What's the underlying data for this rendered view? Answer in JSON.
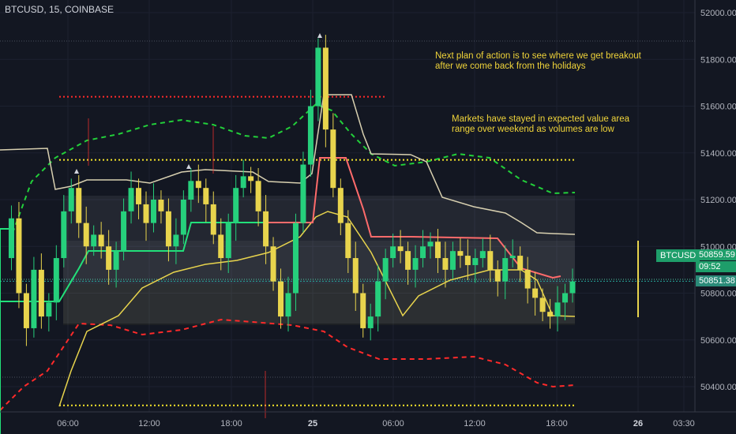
{
  "header": {
    "title": "BTCUSD, 15, COINBASE"
  },
  "annotations": {
    "note1_line1": "Next plan of action is to see where we get breakout",
    "note1_line2": "after we come back from the holidays",
    "note2_line1": "Markets have stayed in expected value area",
    "note2_line2": "range over weekend as volumes are low"
  },
  "price_scale": {
    "symbol_tag": "BTCUSD",
    "last_price": "50859.59",
    "countdown": "09:52",
    "crosshair_price": "50851.38"
  },
  "colors": {
    "background": "#131722",
    "bull": "#26d07c",
    "bear": "#e8d44d",
    "upper_band": "#22d03a",
    "lower_band": "#ff2a2a",
    "vwap_up": "#22e07a",
    "vwap_down": "#ff6b6b",
    "envelope": "#d8d0b0",
    "annotation_text": "#f0d43a",
    "level_red": "#ff2a2a",
    "level_yellow": "#f5e42a"
  },
  "chart_data": {
    "type": "candlestick",
    "symbol": "BTCUSD",
    "interval": "15",
    "exchange": "COINBASE",
    "y_axis": {
      "ticks": [
        52000,
        51800,
        51600,
        51400,
        51200,
        51000,
        50800,
        50600,
        50400
      ],
      "tick_labels": [
        "52000.00",
        "51800.00",
        "51600.00",
        "51400.00",
        "51200.00",
        "51000.00",
        "50800.00",
        "50600.00",
        "50400.00"
      ],
      "ylim": [
        50250,
        52050
      ]
    },
    "x_axis": {
      "tick_labels": [
        "06:00",
        "12:00",
        "18:00",
        "25",
        "06:00",
        "12:00",
        "18:00",
        "26",
        "03:30"
      ],
      "bold": [
        false,
        false,
        false,
        true,
        false,
        false,
        false,
        true,
        false
      ]
    },
    "horizontal_levels": [
      {
        "price": 51640,
        "color": "red",
        "style": "dotted"
      },
      {
        "price": 51370,
        "color": "yellow",
        "style": "dotted"
      },
      {
        "price": 50320,
        "color": "yellow",
        "style": "dotted"
      }
    ],
    "candles_close_path": [
      [
        0,
        50950
      ],
      [
        6,
        51120
      ],
      [
        12,
        50800
      ],
      [
        18,
        50650
      ],
      [
        24,
        50900
      ],
      [
        30,
        50700
      ],
      [
        36,
        50760
      ],
      [
        42,
        50950
      ],
      [
        48,
        51150
      ],
      [
        54,
        51250
      ],
      [
        60,
        51100
      ],
      [
        66,
        51000
      ],
      [
        72,
        51050
      ],
      [
        78,
        51000
      ],
      [
        84,
        50900
      ],
      [
        90,
        50980
      ],
      [
        96,
        51150
      ],
      [
        102,
        51250
      ],
      [
        108,
        51180
      ],
      [
        114,
        51100
      ],
      [
        120,
        51200
      ],
      [
        126,
        51150
      ],
      [
        132,
        51000
      ],
      [
        138,
        51050
      ],
      [
        144,
        51200
      ],
      [
        150,
        51280
      ],
      [
        156,
        51250
      ],
      [
        162,
        51180
      ],
      [
        168,
        51050
      ],
      [
        174,
        50950
      ],
      [
        180,
        51100
      ],
      [
        186,
        51250
      ],
      [
        192,
        51300
      ],
      [
        198,
        51280
      ],
      [
        204,
        51150
      ],
      [
        210,
        51000
      ],
      [
        216,
        50850
      ],
      [
        222,
        50700
      ],
      [
        228,
        50800
      ],
      [
        234,
        51100
      ],
      [
        240,
        51350
      ],
      [
        246,
        51600
      ],
      [
        252,
        51850
      ],
      [
        258,
        51500
      ],
      [
        264,
        51250
      ],
      [
        270,
        51100
      ],
      [
        276,
        50950
      ],
      [
        282,
        50800
      ],
      [
        288,
        50650
      ],
      [
        294,
        50700
      ],
      [
        300,
        50850
      ],
      [
        306,
        50950
      ],
      [
        312,
        51000
      ],
      [
        318,
        50980
      ],
      [
        324,
        50900
      ],
      [
        330,
        50950
      ],
      [
        336,
        51000
      ],
      [
        342,
        51020
      ],
      [
        348,
        50950
      ],
      [
        354,
        50900
      ],
      [
        360,
        50980
      ],
      [
        366,
        50960
      ],
      [
        372,
        50920
      ],
      [
        378,
        50950
      ],
      [
        384,
        50980
      ],
      [
        390,
        50900
      ],
      [
        396,
        50850
      ],
      [
        402,
        50950
      ],
      [
        408,
        50960
      ],
      [
        414,
        50900
      ],
      [
        420,
        50820
      ],
      [
        426,
        50780
      ],
      [
        432,
        50720
      ],
      [
        438,
        50700
      ],
      [
        444,
        50760
      ],
      [
        450,
        50800
      ],
      [
        456,
        50850
      ]
    ]
  }
}
